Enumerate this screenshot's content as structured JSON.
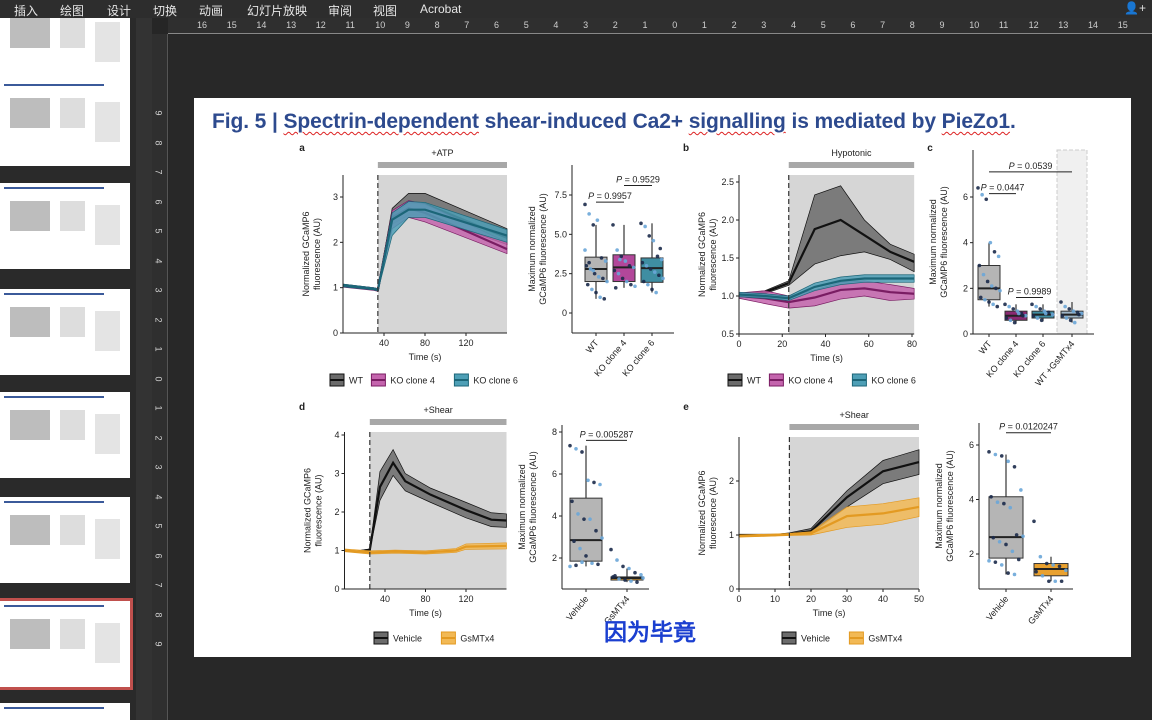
{
  "menu": {
    "items": [
      "插入",
      "绘图",
      "设计",
      "切换",
      "动画",
      "幻灯片放映",
      "审阅",
      "视图",
      "Acrobat"
    ],
    "user_icon": "add-user-icon"
  },
  "thumbnails": {
    "count": 8,
    "selected_index": 6,
    "selected_color": "#c0504d"
  },
  "rulers": {
    "horizontal": [
      "16",
      "15",
      "14",
      "13",
      "12",
      "11",
      "10",
      "9",
      "8",
      "7",
      "6",
      "5",
      "4",
      "3",
      "2",
      "1",
      "0",
      "1",
      "2",
      "3",
      "4",
      "5",
      "6",
      "7",
      "8",
      "9",
      "10",
      "11",
      "12",
      "13",
      "14",
      "15"
    ],
    "vertical": [
      "9",
      "8",
      "7",
      "6",
      "5",
      "4",
      "3",
      "2",
      "1",
      "0",
      "1",
      "2",
      "3",
      "4",
      "5",
      "6",
      "7",
      "8",
      "9"
    ]
  },
  "slide": {
    "title_parts": [
      {
        "text": "Fig. 5 | ",
        "spell_error": false
      },
      {
        "text": "Spectrin-dependent",
        "spell_error": true
      },
      {
        "text": " shear-induced Ca2+ ",
        "spell_error": false
      },
      {
        "text": "signalling",
        "spell_error": true
      },
      {
        "text": " is mediated by ",
        "spell_error": false
      },
      {
        "text": "PieZo1",
        "spell_error": true
      },
      {
        "text": ".",
        "spell_error": false
      }
    ],
    "subtitle": "因为毕竟",
    "title_color": "#2d4a8e",
    "subtitle_color": "#1b3fd0"
  },
  "chart_data": [
    {
      "panel": "a",
      "type": "line",
      "stimulus": "+ATP",
      "stimulus_onset": 34,
      "xlabel": "Time (s)",
      "ylabel_lines": [
        "Normalized GCaMP6",
        "fluorescence (AU)"
      ],
      "xticks": [
        40,
        80,
        120
      ],
      "yticks": [
        0,
        1,
        2,
        3
      ],
      "xlim": [
        0,
        160
      ],
      "ylim": [
        0,
        3.45
      ],
      "series": [
        {
          "name": "WT",
          "line": "#111111",
          "fill": "#6b6b6b",
          "x": [
            0,
            30,
            34,
            48,
            64,
            80,
            160
          ],
          "mean": [
            1.05,
            0.97,
            0.95,
            2.6,
            2.88,
            2.85,
            2.1
          ],
          "lower": [
            1.02,
            0.95,
            0.93,
            2.4,
            2.6,
            2.6,
            1.95
          ],
          "upper": [
            1.08,
            1.0,
            0.98,
            2.75,
            3.08,
            3.08,
            2.3
          ]
        },
        {
          "name": "KO clone 4",
          "line": "#7a1d63",
          "fill": "#c464ad",
          "x": [
            0,
            30,
            34,
            48,
            64,
            80,
            160
          ],
          "mean": [
            1.04,
            0.97,
            0.95,
            2.55,
            2.75,
            2.65,
            1.85
          ],
          "lower": [
            1.01,
            0.94,
            0.92,
            2.3,
            2.55,
            2.45,
            1.75
          ],
          "upper": [
            1.07,
            1.0,
            0.98,
            2.7,
            2.92,
            2.85,
            2.0
          ]
        },
        {
          "name": "KO clone 6",
          "line": "#1c6678",
          "fill": "#4e9fb6",
          "x": [
            0,
            30,
            34,
            48,
            64,
            80,
            160
          ],
          "mean": [
            1.05,
            0.97,
            0.95,
            2.5,
            2.72,
            2.72,
            2.15
          ],
          "lower": [
            1.02,
            0.95,
            0.93,
            2.15,
            2.55,
            2.55,
            2.0
          ],
          "upper": [
            1.08,
            1.0,
            0.98,
            2.65,
            2.9,
            2.88,
            2.28
          ]
        }
      ]
    },
    {
      "panel": "a-box",
      "type": "box",
      "ylabel_lines": [
        "Maximum normalized",
        "GCaMP6 fluorescence (AU)"
      ],
      "yticks": [
        0,
        2.5,
        5.0,
        7.5
      ],
      "ytick_labels": [
        "0",
        "2.5",
        "5.0",
        "7.5"
      ],
      "ylim": [
        0,
        7.5
      ],
      "categories": [
        "WT",
        "KO clone 4",
        "KO clone 6"
      ],
      "boxes": [
        {
          "q1": 2.0,
          "median": 2.8,
          "q3": 3.55,
          "low": 0.9,
          "high": 5.6,
          "fill": "#b5b5b5",
          "points": [
            6.9,
            6.3,
            5.6,
            5.9,
            3.5,
            3.3,
            3.0,
            2.8,
            2.5,
            2.3,
            2.2,
            2.0,
            1.8,
            1.5,
            1.3,
            1.0,
            0.9,
            4.0,
            3.2,
            2.7
          ]
        },
        {
          "q1": 2.0,
          "median": 2.9,
          "q3": 3.7,
          "low": 1.6,
          "high": 5.6,
          "fill": "#b2479a",
          "points": [
            5.6,
            4.0,
            3.6,
            3.3,
            3.0,
            2.9,
            2.7,
            2.5,
            2.2,
            2.0,
            1.8,
            1.7,
            1.6,
            3.4
          ]
        },
        {
          "q1": 1.95,
          "median": 2.85,
          "q3": 3.5,
          "low": 1.3,
          "high": 5.7,
          "fill": "#3f8ea2",
          "points": [
            5.7,
            5.5,
            4.9,
            4.6,
            3.6,
            3.4,
            3.2,
            3.0,
            2.8,
            2.6,
            2.4,
            2.2,
            2.0,
            1.8,
            1.5,
            1.3,
            4.1
          ]
        }
      ],
      "comparisons": [
        {
          "label": "P = 0.9957",
          "from": 0,
          "to": 1,
          "y": 7.05
        },
        {
          "label": "P = 0.9529",
          "from": 1,
          "to": 2,
          "y": 8.1
        }
      ]
    },
    {
      "panel": "b",
      "type": "line",
      "stimulus": "Hypotonic",
      "stimulus_onset": 23,
      "xlabel": "Time (s)",
      "ylabel_lines": [
        "Normalized GCaMP6",
        "fluorescence (AU)"
      ],
      "xticks": [
        0,
        20,
        40,
        60,
        80
      ],
      "yticks": [
        0.5,
        1.0,
        1.5,
        2.0,
        2.5
      ],
      "ytick_labels": [
        "0.5",
        "1.0",
        "1.5",
        "2.0",
        "2.5"
      ],
      "xlim": [
        0,
        81
      ],
      "ylim": [
        0.5,
        2.6
      ],
      "series": [
        {
          "name": "WT",
          "line": "#111111",
          "fill": "#6b6b6b",
          "x": [
            0,
            12,
            23,
            35,
            47,
            58,
            70,
            81
          ],
          "mean": [
            1.0,
            1.05,
            1.17,
            1.88,
            2.0,
            1.8,
            1.58,
            1.45
          ],
          "lower": [
            0.98,
            1.03,
            1.14,
            1.42,
            1.53,
            1.58,
            1.48,
            1.32
          ],
          "upper": [
            1.02,
            1.07,
            1.2,
            2.33,
            2.45,
            2.0,
            1.68,
            1.55
          ]
        },
        {
          "name": "KO clone 4",
          "line": "#7a1d63",
          "fill": "#c464ad",
          "x": [
            0,
            12,
            23,
            35,
            47,
            58,
            70,
            81
          ],
          "mean": [
            1.0,
            0.97,
            0.92,
            0.98,
            1.08,
            1.1,
            1.05,
            1.03
          ],
          "lower": [
            0.97,
            0.9,
            0.84,
            0.87,
            0.96,
            1.0,
            0.94,
            0.96
          ],
          "upper": [
            1.04,
            1.07,
            1.0,
            1.08,
            1.18,
            1.2,
            1.15,
            1.1
          ]
        },
        {
          "name": "KO clone 6",
          "line": "#1c6678",
          "fill": "#4e9fb6",
          "x": [
            0,
            12,
            23,
            35,
            47,
            58,
            70,
            81
          ],
          "mean": [
            1.02,
            1.0,
            0.97,
            1.12,
            1.2,
            1.23,
            1.23,
            1.23
          ],
          "lower": [
            0.99,
            0.97,
            0.94,
            1.07,
            1.15,
            1.18,
            1.18,
            1.18
          ],
          "upper": [
            1.05,
            1.03,
            1.0,
            1.17,
            1.25,
            1.28,
            1.28,
            1.28
          ]
        }
      ]
    },
    {
      "panel": "c",
      "type": "box",
      "ylabel_lines": [
        "Maximum normalized",
        "GCaMP6 fluorescence (AU)"
      ],
      "yticks": [
        0,
        2,
        4,
        6
      ],
      "ytick_labels": [
        "0",
        "2",
        "4",
        "6"
      ],
      "ylim": [
        0,
        7.6
      ],
      "categories": [
        "WT",
        "KO clone 4",
        "KO clone 6",
        "WT +GsMTx4"
      ],
      "highlight_category": 3,
      "boxes": [
        {
          "q1": 1.5,
          "median": 2.0,
          "q3": 3.0,
          "low": 1.2,
          "high": 4.0,
          "fill": "#b5b5b5",
          "points": [
            6.4,
            6.1,
            5.9,
            4.0,
            3.6,
            3.4,
            3.0,
            2.6,
            2.3,
            2.1,
            2.0,
            1.9,
            1.6,
            1.5,
            1.4,
            1.3,
            1.2
          ]
        },
        {
          "q1": 0.6,
          "median": 0.8,
          "q3": 1.0,
          "low": 0.45,
          "high": 1.3,
          "fill": "#8a2a72",
          "points": [
            1.3,
            1.2,
            1.1,
            1.0,
            0.9,
            0.8,
            0.7,
            0.6,
            0.5,
            0.9,
            0.8
          ]
        },
        {
          "q1": 0.7,
          "median": 0.85,
          "q3": 1.0,
          "low": 0.55,
          "high": 1.3,
          "fill": "#3f8ea2",
          "points": [
            1.3,
            1.2,
            1.1,
            1.0,
            0.95,
            0.85,
            0.8,
            0.7,
            0.6,
            0.9
          ]
        },
        {
          "q1": 0.7,
          "median": 0.85,
          "q3": 1.0,
          "low": 0.5,
          "high": 1.4,
          "fill": "#9fb6c8",
          "points": [
            1.4,
            1.2,
            1.1,
            1.0,
            0.95,
            0.9,
            0.8,
            0.7,
            0.6,
            0.5,
            0.85
          ]
        }
      ],
      "comparisons": [
        {
          "label": "P = 0.0539",
          "from": 0,
          "to": 3,
          "y": 7.1
        },
        {
          "label": "P = 0.0447",
          "from": 0,
          "to": 1,
          "y": 6.15
        },
        {
          "label": "P = 0.9989",
          "from": 1,
          "to": 2,
          "y": 1.6
        }
      ]
    },
    {
      "panel": "d",
      "type": "line",
      "stimulus": "+Shear",
      "stimulus_onset": 25,
      "xlabel": "Time (s)",
      "ylabel_lines": [
        "Normalized GCaMP6",
        "fluorescence (AU)"
      ],
      "xticks": [
        40,
        80,
        120
      ],
      "yticks": [
        0,
        1,
        2,
        3,
        4
      ],
      "xlim": [
        0,
        160
      ],
      "ylim": [
        0,
        4.05
      ],
      "series": [
        {
          "name": "Vehicle",
          "line": "#111111",
          "fill": "#6b6b6b",
          "x": [
            0,
            12,
            25,
            35,
            48,
            60,
            85,
            120,
            145,
            160
          ],
          "mean": [
            1.0,
            0.97,
            1.02,
            2.65,
            3.28,
            2.8,
            2.45,
            2.05,
            1.8,
            1.78
          ],
          "lower": [
            0.98,
            0.95,
            1.0,
            2.3,
            2.95,
            2.55,
            2.25,
            1.85,
            1.62,
            1.6
          ],
          "upper": [
            1.02,
            0.99,
            1.04,
            3.05,
            3.62,
            3.0,
            2.62,
            2.25,
            1.98,
            1.95
          ]
        },
        {
          "name": "GsMTx4",
          "line": "#e39a22",
          "fill": "#f2b955",
          "x": [
            0,
            25,
            50,
            80,
            110,
            120,
            160
          ],
          "mean": [
            1.0,
            0.95,
            0.97,
            0.95,
            1.0,
            1.1,
            1.12
          ],
          "lower": [
            0.97,
            0.91,
            0.93,
            0.91,
            0.95,
            1.03,
            1.04
          ],
          "upper": [
            1.04,
            0.99,
            1.01,
            0.99,
            1.05,
            1.17,
            1.2
          ]
        }
      ]
    },
    {
      "panel": "d-box",
      "type": "box",
      "ylabel_lines": [
        "Maximum normalized",
        "GCaMP6 fluorescence (AU)"
      ],
      "yticks": [
        2,
        4,
        6,
        8
      ],
      "ytick_labels": [
        "2",
        "4",
        "6",
        "8"
      ],
      "ylim": [
        0.5,
        8.3
      ],
      "categories": [
        "Vehicle",
        "GsMTx4"
      ],
      "boxes": [
        {
          "q1": 1.85,
          "median": 2.85,
          "q3": 4.85,
          "low": 1.6,
          "high": 7.35,
          "fill": "#b5b5b5",
          "points": [
            7.35,
            7.2,
            7.05,
            5.7,
            5.6,
            5.5,
            4.7,
            4.1,
            3.85,
            3.85,
            3.3,
            2.95,
            2.8,
            2.45,
            2.1,
            1.75,
            1.7,
            1.6,
            1.65,
            1.8
          ]
        },
        {
          "q1": 0.95,
          "median": 1.05,
          "q3": 1.1,
          "low": 0.85,
          "high": 1.5,
          "fill": "#e9a12f",
          "points": [
            2.4,
            1.9,
            1.6,
            1.5,
            1.3,
            1.2,
            1.1,
            1.0,
            0.95,
            0.9,
            0.85,
            1.05,
            1.15
          ]
        }
      ],
      "comparisons": [
        {
          "label": "P = 0.005287",
          "from": 0,
          "to": 1,
          "y": 7.6
        }
      ]
    },
    {
      "panel": "e",
      "type": "line",
      "stimulus": "+Shear",
      "stimulus_onset": 14,
      "xlabel": "Time (s)",
      "ylabel_lines": [
        "Normalized GCaMP6",
        "fluorescence (AU)"
      ],
      "xticks": [
        0,
        10,
        20,
        30,
        40,
        50
      ],
      "yticks": [
        0,
        1,
        2
      ],
      "xlim": [
        0,
        50
      ],
      "ylim": [
        0,
        2.8
      ],
      "series": [
        {
          "name": "Vehicle",
          "line": "#111111",
          "fill": "#6b6b6b",
          "x": [
            0,
            10,
            14,
            20,
            30,
            40,
            50
          ],
          "mean": [
            1.0,
            1.0,
            1.02,
            1.07,
            1.7,
            2.18,
            2.35
          ],
          "lower": [
            0.98,
            0.99,
            1.0,
            1.03,
            1.52,
            1.95,
            2.12
          ],
          "upper": [
            1.01,
            1.01,
            1.04,
            1.12,
            1.82,
            2.38,
            2.58
          ]
        },
        {
          "name": "GsMTx4",
          "line": "#e39a22",
          "fill": "#f2b955",
          "x": [
            0,
            10,
            14,
            20,
            30,
            40,
            50
          ],
          "mean": [
            0.98,
            1.0,
            1.01,
            1.03,
            1.35,
            1.4,
            1.52
          ],
          "lower": [
            0.96,
            0.98,
            0.99,
            1.0,
            1.14,
            1.2,
            1.34
          ],
          "upper": [
            1.0,
            1.02,
            1.03,
            1.06,
            1.52,
            1.58,
            1.69
          ]
        }
      ]
    },
    {
      "panel": "e-box",
      "type": "box",
      "ylabel_lines": [
        "Maximum normalized",
        "GCaMP6 fluorescence (AU)"
      ],
      "yticks": [
        2,
        4,
        6
      ],
      "ytick_labels": [
        "2",
        "4",
        "6"
      ],
      "ylim": [
        0.8,
        6.8
      ],
      "categories": [
        "Vehicle",
        "GsMTx4"
      ],
      "boxes": [
        {
          "q1": 1.85,
          "median": 2.62,
          "q3": 4.1,
          "low": 1.25,
          "high": 5.65,
          "fill": "#b5b5b5",
          "points": [
            5.75,
            5.65,
            5.6,
            5.4,
            5.2,
            4.35,
            4.1,
            3.9,
            3.85,
            3.7,
            2.7,
            2.65,
            2.6,
            2.45,
            2.35,
            2.1,
            1.8,
            1.75,
            1.7,
            1.6,
            1.3,
            1.25
          ]
        },
        {
          "q1": 1.2,
          "median": 1.45,
          "q3": 1.65,
          "low": 1.0,
          "high": 1.9,
          "fill": "#e9a12f",
          "points": [
            3.2,
            1.9,
            1.65,
            1.6,
            1.55,
            1.4,
            1.35,
            1.2,
            1.0,
            1.0,
            1.0
          ]
        }
      ],
      "comparisons": [
        {
          "label": "P = 0.0120247",
          "from": 0,
          "to": 1,
          "y": 6.45
        }
      ]
    }
  ],
  "point_colors": [
    "#1b2a4a",
    "#6aa6d8"
  ],
  "stimulus_shade": "#d6d6d6",
  "stimulus_bar": "#a8a8a8"
}
